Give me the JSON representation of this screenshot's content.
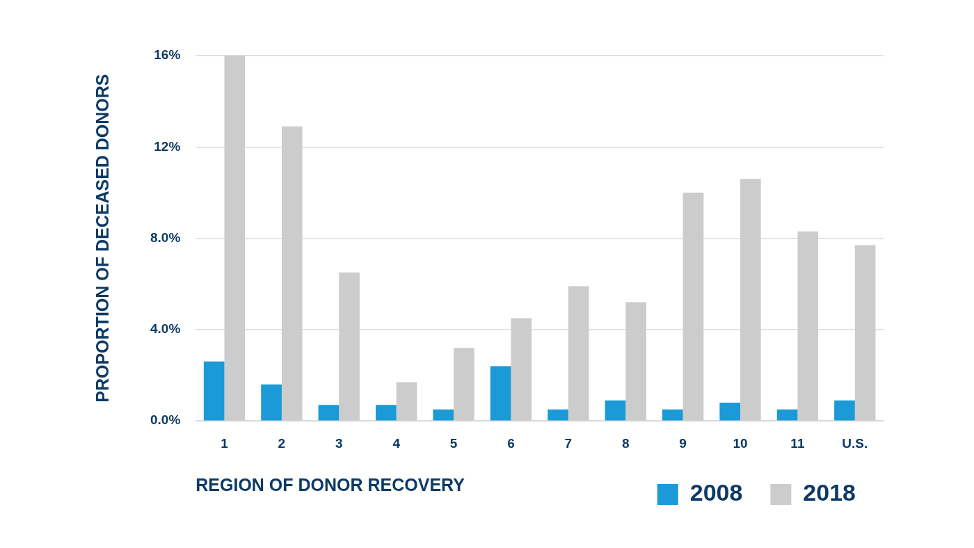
{
  "chart_data": {
    "type": "bar",
    "x_label": "REGION OF DONOR RECOVERY",
    "y_label": "PROPORTION OF DECEASED DONORS",
    "categories": [
      "1",
      "2",
      "3",
      "4",
      "5",
      "6",
      "7",
      "8",
      "9",
      "10",
      "11",
      "U.S."
    ],
    "series": [
      {
        "name": "2008",
        "color": "#1a9ad6",
        "values": [
          2.6,
          1.6,
          0.7,
          0.7,
          0.5,
          2.4,
          0.5,
          0.9,
          0.5,
          0.8,
          0.5,
          0.9
        ]
      },
      {
        "name": "2018",
        "color": "#cccccc",
        "values": [
          16.0,
          12.9,
          6.5,
          1.7,
          3.2,
          4.5,
          5.9,
          5.2,
          10.0,
          10.6,
          8.3,
          7.7
        ]
      }
    ],
    "ylim": [
      0,
      16
    ],
    "yticks": [
      {
        "value": 0,
        "label": "0.0%"
      },
      {
        "value": 4,
        "label": "4.0%"
      },
      {
        "value": 8,
        "label": "8.0%"
      },
      {
        "value": 12,
        "label": "12%"
      },
      {
        "value": 16,
        "label": "16%"
      }
    ],
    "grid": true,
    "legend": "lower right"
  }
}
